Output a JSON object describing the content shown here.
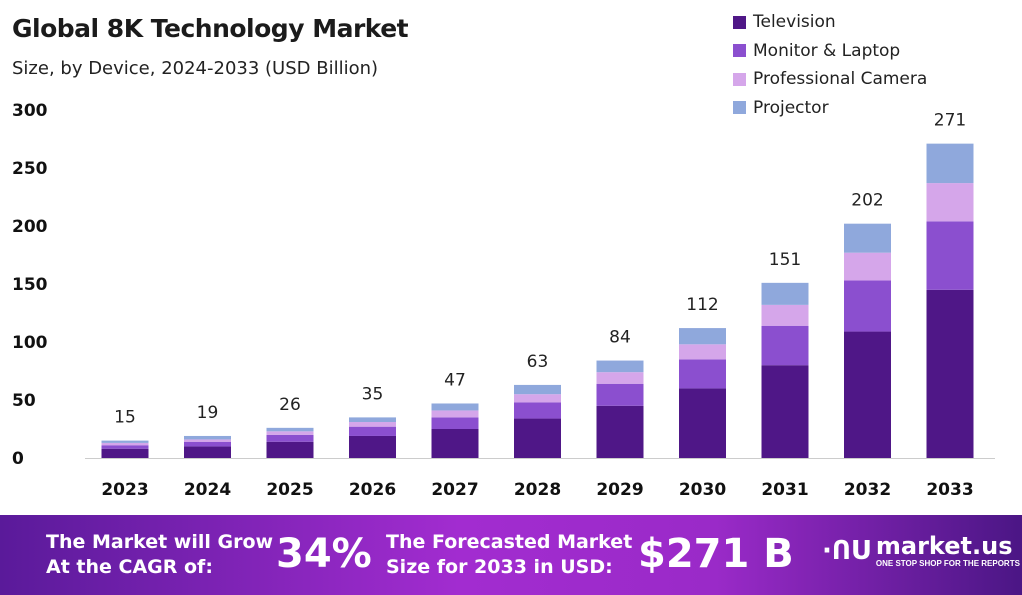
{
  "chart_data": {
    "type": "bar",
    "stacked": true,
    "title": "Global 8K Technology Market",
    "subtitle": "Size, by Device, 2024-2033 (USD Billion)",
    "categories": [
      "2023",
      "2024",
      "2025",
      "2026",
      "2027",
      "2028",
      "2029",
      "2030",
      "2031",
      "2032",
      "2033"
    ],
    "series": [
      {
        "name": "Television",
        "color": "#4f1787",
        "values": [
          8,
          10,
          14,
          19,
          25,
          34,
          45,
          60,
          80,
          109,
          145
        ]
      },
      {
        "name": "Monitor & Laptop",
        "color": "#8b4fcf",
        "values": [
          3,
          4,
          6,
          8,
          10,
          14,
          19,
          25,
          34,
          44,
          59
        ]
      },
      {
        "name": "Professional Camera",
        "color": "#d5a6ea",
        "values": [
          2,
          2,
          3,
          4,
          6,
          7,
          10,
          13,
          18,
          24,
          33
        ]
      },
      {
        "name": "Projector",
        "color": "#8fa8dc",
        "values": [
          2,
          3,
          3,
          4,
          6,
          8,
          10,
          14,
          19,
          25,
          34
        ]
      }
    ],
    "totals": [
      "15",
      "19",
      "26",
      "35",
      "47",
      "63",
      "84",
      "112",
      "151",
      "202",
      "271"
    ],
    "yticks": [
      "0",
      "50",
      "100",
      "150",
      "200",
      "250",
      "300"
    ],
    "ylim": [
      0,
      300
    ],
    "grid": false,
    "legend_position": "top-right"
  },
  "footer": {
    "cagr_text_1": "The Market will Grow",
    "cagr_text_2": "At the CAGR of:",
    "cagr_value": "34%",
    "forecast_text_1": "The Forecasted Market",
    "forecast_text_2": "Size for 2033 in USD:",
    "forecast_value": "$271 B",
    "logo_name": "market.us",
    "logo_tagline": "ONE STOP SHOP FOR THE REPORTS"
  }
}
